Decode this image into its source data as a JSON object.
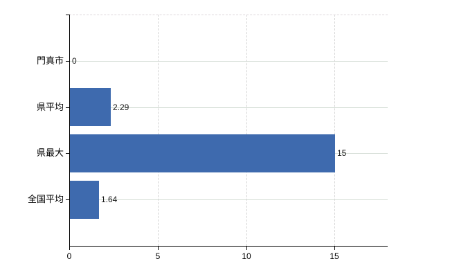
{
  "chart_data": {
    "type": "bar",
    "orientation": "horizontal",
    "title": "",
    "categories": [
      "門真市",
      "県平均",
      "県最大",
      "全国平均"
    ],
    "values": [
      0,
      2.29,
      15,
      1.64
    ],
    "value_labels": [
      "0",
      "2.29",
      "15",
      "1.64"
    ],
    "x_tick_labels": [
      "0",
      "5",
      "10",
      "15"
    ],
    "x_tick_values": [
      0,
      5,
      10,
      15
    ],
    "xlim": [
      0,
      18
    ],
    "xlabel": "",
    "ylabel": "",
    "legend": "none",
    "grid": {
      "vertical_value_gridlines": "dashed",
      "horizontal_category_lines": "solid",
      "top_border": "dashed"
    },
    "colors": {
      "bar": "#3e6aae",
      "axis": "#000000",
      "category_gridline": "#d4ddd5",
      "value_gridline": "#d4d4d4",
      "top_border": "#dcd6da",
      "background": "#ffffff",
      "label_text": "#000000"
    }
  }
}
